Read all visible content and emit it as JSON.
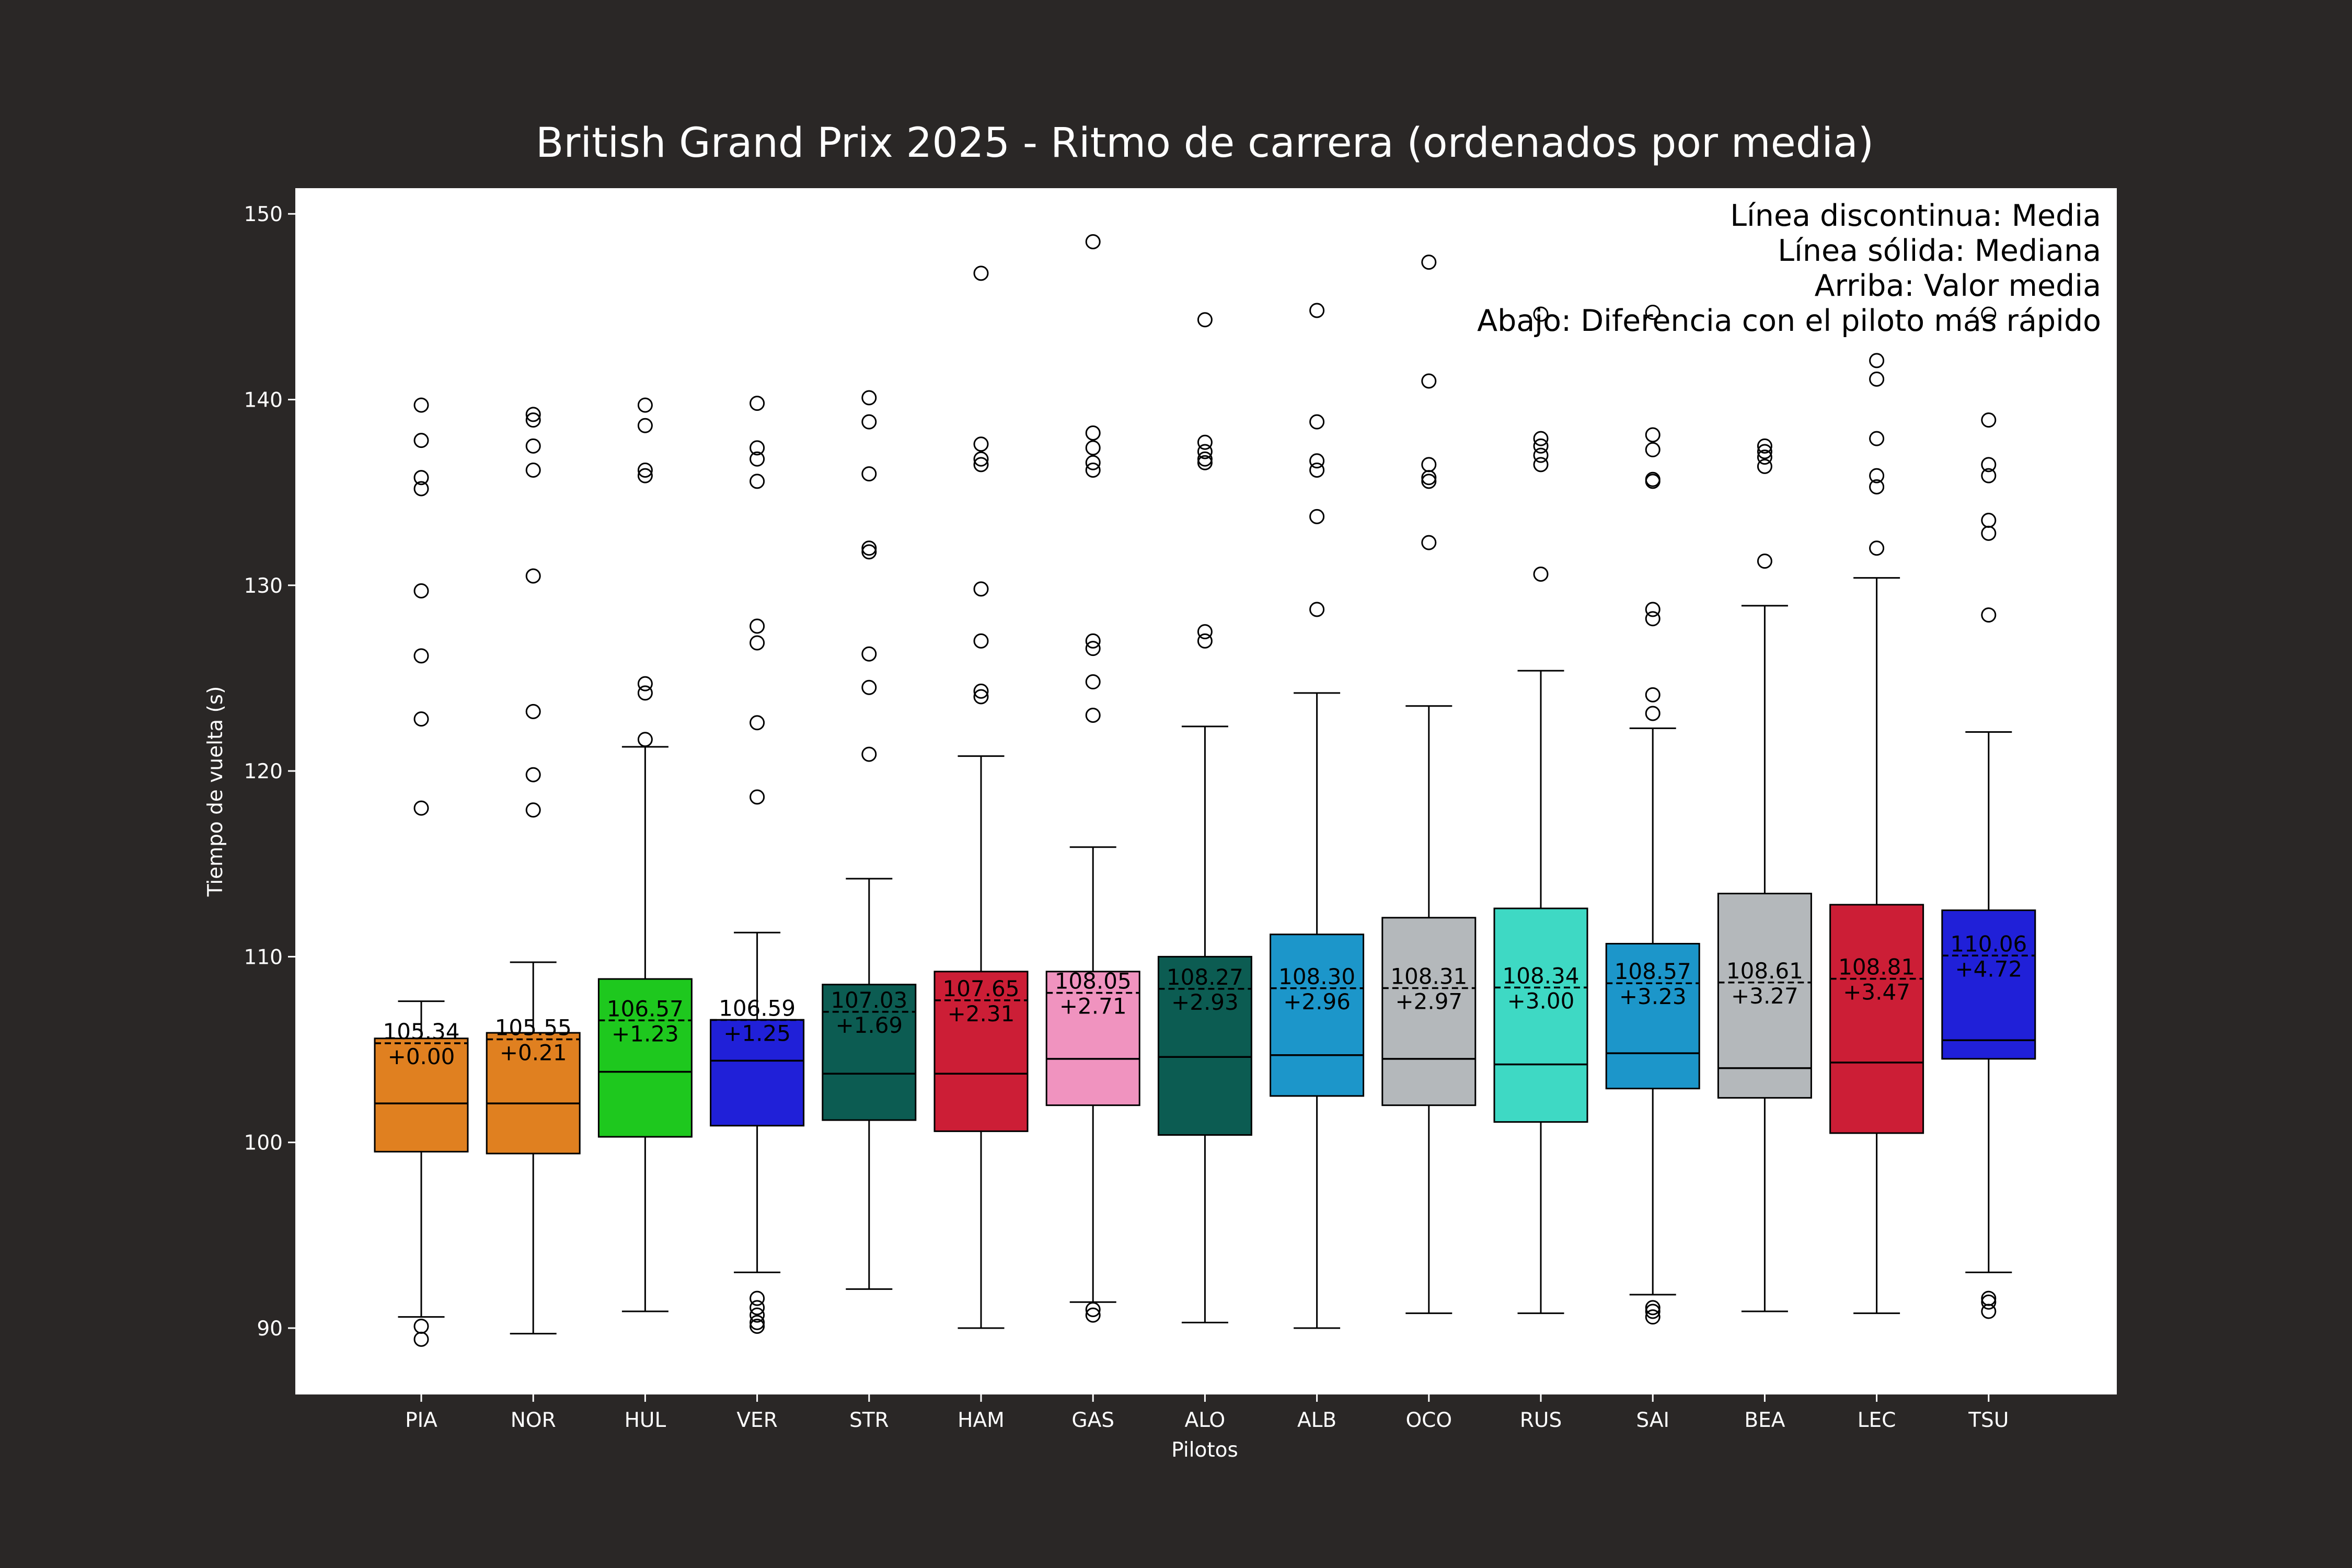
{
  "chart_data": {
    "type": "box",
    "title": "British Grand Prix 2025 - Ritmo de carrera (ordenados por media)",
    "xlabel": "Pilotos",
    "ylabel": "Tiempo de vuelta (s)",
    "ylim": [
      86.3,
      152.2
    ],
    "yticks": [
      90,
      100,
      110,
      120,
      130,
      140,
      150
    ],
    "legend_lines": [
      "Línea discontinua: Media",
      "Línea sólida: Mediana",
      "Arriba: Valor media",
      "Abajo: Diferencia con el piloto más rápido"
    ],
    "legend_position": "top-right",
    "drivers": [
      {
        "name": "PIA",
        "color": "#e08020",
        "whisker_low": 90.6,
        "q1": 99.5,
        "median": 102.1,
        "q3": 105.6,
        "whisker_high": 107.6,
        "mean": 105.34,
        "mean_label": "105.34",
        "diff_label": "+0.00",
        "outliers": [
          139.7,
          137.8,
          135.8,
          135.2,
          129.7,
          126.2,
          122.8,
          118.0,
          90.1,
          89.4
        ]
      },
      {
        "name": "NOR",
        "color": "#e08020",
        "whisker_low": 89.7,
        "q1": 99.4,
        "median": 102.1,
        "q3": 105.9,
        "whisker_high": 109.7,
        "mean": 105.55,
        "mean_label": "105.55",
        "diff_label": "+0.21",
        "outliers": [
          139.2,
          138.9,
          137.5,
          136.2,
          130.5,
          123.2,
          119.8,
          117.9
        ]
      },
      {
        "name": "HUL",
        "color": "#1ec81e",
        "whisker_low": 90.9,
        "q1": 100.3,
        "median": 103.8,
        "q3": 108.8,
        "whisker_high": 121.3,
        "mean": 106.57,
        "mean_label": "106.57",
        "diff_label": "+1.23",
        "outliers": [
          139.7,
          138.6,
          136.2,
          135.9,
          124.7,
          124.2,
          121.7
        ]
      },
      {
        "name": "VER",
        "color": "#2020d8",
        "whisker_low": 93.0,
        "q1": 100.9,
        "median": 104.4,
        "q3": 106.6,
        "whisker_high": 111.3,
        "mean": 106.59,
        "mean_label": "106.59",
        "diff_label": "+1.25",
        "outliers": [
          139.8,
          137.4,
          136.8,
          135.6,
          127.8,
          126.9,
          122.6,
          118.6,
          91.6,
          91.1,
          90.7,
          90.3,
          90.1
        ]
      },
      {
        "name": "STR",
        "color": "#0c5c52",
        "whisker_low": 92.1,
        "q1": 101.2,
        "median": 103.7,
        "q3": 108.5,
        "whisker_high": 114.2,
        "mean": 107.03,
        "mean_label": "107.03",
        "diff_label": "+1.69",
        "outliers": [
          140.1,
          138.8,
          136.0,
          132.0,
          131.8,
          126.3,
          124.5,
          120.9
        ]
      },
      {
        "name": "HAM",
        "color": "#cc1e36",
        "whisker_low": 90.0,
        "q1": 100.6,
        "median": 103.7,
        "q3": 109.2,
        "whisker_high": 120.8,
        "mean": 107.65,
        "mean_label": "107.65",
        "diff_label": "+2.31",
        "outliers": [
          146.8,
          137.6,
          136.8,
          136.5,
          129.8,
          127.0,
          124.3,
          124.0
        ]
      },
      {
        "name": "GAS",
        "color": "#f093bf",
        "whisker_low": 91.4,
        "q1": 102.0,
        "median": 104.5,
        "q3": 109.2,
        "whisker_high": 115.9,
        "mean": 108.05,
        "mean_label": "108.05",
        "diff_label": "+2.71",
        "outliers": [
          148.5,
          138.2,
          137.4,
          136.6,
          136.2,
          127.0,
          126.6,
          124.8,
          123.0,
          91.0,
          90.7
        ]
      },
      {
        "name": "ALO",
        "color": "#0c5c52",
        "whisker_low": 90.3,
        "q1": 100.4,
        "median": 104.6,
        "q3": 110.0,
        "whisker_high": 122.4,
        "mean": 108.27,
        "mean_label": "108.27",
        "diff_label": "+2.93",
        "outliers": [
          144.3,
          137.7,
          137.2,
          136.8,
          136.6,
          127.5,
          127.0
        ]
      },
      {
        "name": "ALB",
        "color": "#1c96ca",
        "whisker_low": 90.0,
        "q1": 102.5,
        "median": 104.7,
        "q3": 111.2,
        "whisker_high": 124.2,
        "mean": 108.3,
        "mean_label": "108.30",
        "diff_label": "+2.96",
        "outliers": [
          144.8,
          138.8,
          136.7,
          136.2,
          133.7,
          128.7
        ]
      },
      {
        "name": "OCO",
        "color": "#b4b8bb",
        "whisker_low": 90.8,
        "q1": 102.0,
        "median": 104.5,
        "q3": 112.1,
        "whisker_high": 123.5,
        "mean": 108.31,
        "mean_label": "108.31",
        "diff_label": "+2.97",
        "outliers": [
          147.4,
          141.0,
          136.5,
          135.8,
          135.6,
          132.3
        ]
      },
      {
        "name": "RUS",
        "color": "#3ed9c4",
        "whisker_low": 90.8,
        "q1": 101.1,
        "median": 104.2,
        "q3": 112.6,
        "whisker_high": 125.4,
        "mean": 108.34,
        "mean_label": "108.34",
        "diff_label": "+3.00",
        "outliers": [
          144.6,
          137.9,
          137.5,
          137.0,
          136.5,
          130.6
        ]
      },
      {
        "name": "SAI",
        "color": "#1c96ca",
        "whisker_low": 91.8,
        "q1": 102.9,
        "median": 104.8,
        "q3": 110.7,
        "whisker_high": 122.3,
        "mean": 108.57,
        "mean_label": "108.57",
        "diff_label": "+3.23",
        "outliers": [
          144.7,
          138.1,
          137.3,
          135.7,
          135.6,
          128.7,
          128.2,
          124.1,
          123.1,
          91.1,
          90.9,
          90.6
        ]
      },
      {
        "name": "BEA",
        "color": "#b4b8bb",
        "whisker_low": 90.9,
        "q1": 102.4,
        "median": 104.0,
        "q3": 113.4,
        "whisker_high": 128.9,
        "mean": 108.61,
        "mean_label": "108.61",
        "diff_label": "+3.27",
        "outliers": [
          137.5,
          137.2,
          136.9,
          136.4,
          131.3
        ]
      },
      {
        "name": "LEC",
        "color": "#cc1e36",
        "whisker_low": 90.8,
        "q1": 100.5,
        "median": 104.3,
        "q3": 112.8,
        "whisker_high": 130.4,
        "mean": 108.81,
        "mean_label": "108.81",
        "diff_label": "+3.47",
        "outliers": [
          142.1,
          141.1,
          137.9,
          135.9,
          135.3,
          132.0
        ]
      },
      {
        "name": "TSU",
        "color": "#2020d8",
        "whisker_low": 93.0,
        "q1": 104.5,
        "median": 105.5,
        "q3": 112.5,
        "whisker_high": 122.1,
        "mean": 110.06,
        "mean_label": "110.06",
        "diff_label": "+4.72",
        "outliers": [
          144.6,
          138.9,
          136.5,
          135.9,
          133.5,
          132.8,
          128.4,
          91.6,
          91.4,
          90.9
        ]
      }
    ]
  }
}
